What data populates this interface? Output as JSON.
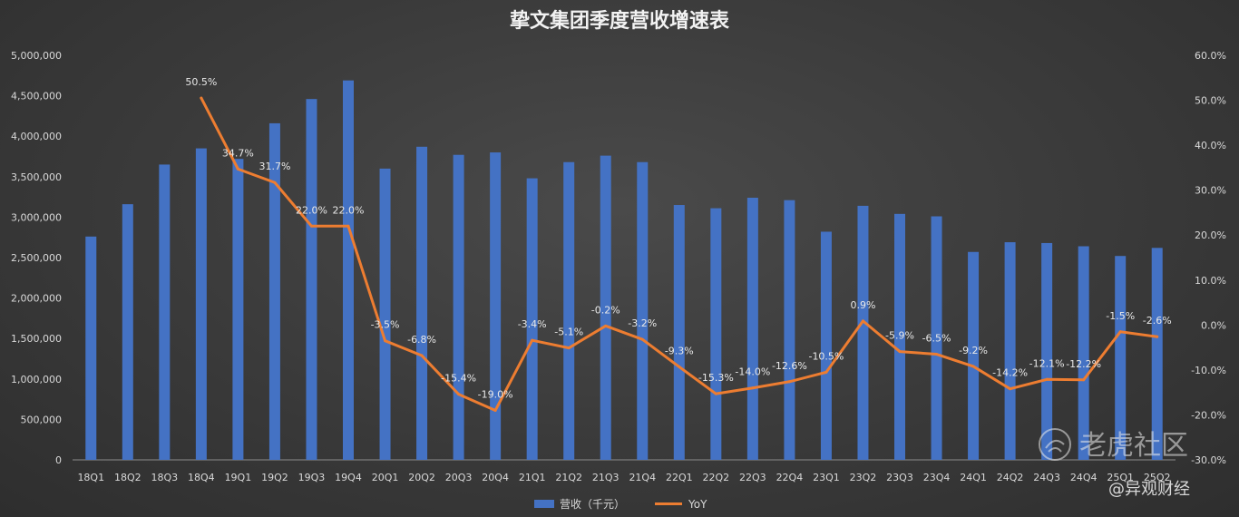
{
  "chart_data": {
    "type": "bar+line",
    "title": "挚文集团季度营收增速表",
    "categories": [
      "18Q1",
      "18Q2",
      "18Q3",
      "18Q4",
      "19Q1",
      "19Q2",
      "19Q3",
      "19Q4",
      "20Q1",
      "20Q2",
      "20Q3",
      "20Q4",
      "21Q1",
      "21Q2",
      "21Q3",
      "21Q4",
      "22Q1",
      "22Q2",
      "22Q3",
      "22Q4",
      "23Q1",
      "23Q2",
      "23Q3",
      "23Q4",
      "24Q1",
      "24Q2",
      "24Q3",
      "24Q4",
      "25Q1",
      "25Q2"
    ],
    "series": [
      {
        "name": "营收（千元）",
        "type": "bar",
        "axis": "left",
        "color": "#4472c4",
        "values": [
          2760000,
          3160000,
          3650000,
          3850000,
          3720000,
          4160000,
          4460000,
          4690000,
          3600000,
          3870000,
          3770000,
          3800000,
          3480000,
          3680000,
          3760000,
          3680000,
          3150000,
          3110000,
          3240000,
          3210000,
          2820000,
          3140000,
          3040000,
          3010000,
          2570000,
          2690000,
          2680000,
          2640000,
          2520000,
          2620000
        ]
      },
      {
        "name": "YoY",
        "type": "line",
        "axis": "right",
        "color": "#ed7d31",
        "values": [
          null,
          null,
          null,
          50.5,
          34.7,
          31.7,
          22.0,
          22.0,
          -3.5,
          -6.8,
          -15.4,
          -19.0,
          -3.4,
          -5.1,
          -0.2,
          -3.2,
          -9.3,
          -15.3,
          -14.0,
          -12.6,
          -10.5,
          0.9,
          -5.9,
          -6.5,
          -9.2,
          -14.2,
          -12.1,
          -12.2,
          -1.5,
          -2.6
        ],
        "labels": [
          "",
          "",
          "",
          "50.5%",
          "34.7%",
          "31.7%",
          "22.0%",
          "22.0%",
          "-3.5%",
          "-6.8%",
          "-15.4%",
          "-19.0%",
          "-3.4%",
          "-5.1%",
          "-0.2%",
          "-3.2%",
          "-9.3%",
          "-15.3%",
          "-14.0%",
          "-12.6%",
          "-10.5%",
          "0.9%",
          "-5.9%",
          "-6.5%",
          "-9.2%",
          "-14.2%",
          "-12.1%",
          "-12.2%",
          "-1.5%",
          "-2.6%"
        ]
      }
    ],
    "y_left": {
      "min": 0,
      "max": 5000000,
      "step": 500000,
      "tick_labels": [
        "0",
        "500,000",
        "1,000,000",
        "1,500,000",
        "2,000,000",
        "2,500,000",
        "3,000,000",
        "3,500,000",
        "4,000,000",
        "4,500,000",
        "5,000,000"
      ]
    },
    "y_right": {
      "min": -30,
      "max": 60,
      "step": 10,
      "tick_labels": [
        "-30.0%",
        "-20.0%",
        "-10.0%",
        "0.0%",
        "10.0%",
        "20.0%",
        "30.0%",
        "40.0%",
        "50.0%",
        "60.0%"
      ]
    },
    "legend": {
      "position": "bottom",
      "items": [
        "营收（千元）",
        "YoY"
      ]
    },
    "grid": false
  },
  "watermark": {
    "logo_text": "老虎社区",
    "credit": "@异观财经"
  }
}
